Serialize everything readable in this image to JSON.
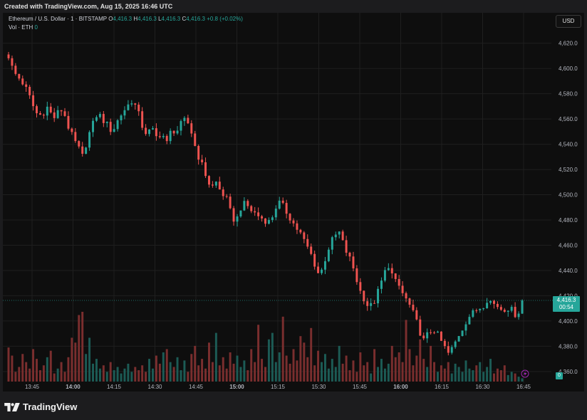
{
  "header": {
    "created_text": "Created with TradingView.com, Aug 15, 2025 16:46 UTC"
  },
  "legend": {
    "symbol": "Ethereum / U.S. Dollar · 1 · BITSTAMP",
    "open_label": "O",
    "open": "4,416.3",
    "high_label": "H",
    "high": "4,416.3",
    "low_label": "L",
    "low": "4,416.3",
    "close_label": "C",
    "close": "4,416.3",
    "change": "+0.8 (+0.02%)",
    "volume_label": "Vol · ETH",
    "volume": "0"
  },
  "currency_button": "USD",
  "price_tag": {
    "price": "4,416.3",
    "countdown": "00:54"
  },
  "volume_tag": "0",
  "brand": "TradingView",
  "colors": {
    "up": "#26a69a",
    "down": "#ef5350",
    "background": "#0e0e0e",
    "grid": "#1f1f1f"
  },
  "chart_data": {
    "type": "candlestick",
    "symbol": "ETH/USD",
    "interval_minutes": 1,
    "ylim": [
      4352,
      4630
    ],
    "y_ticks": [
      4620,
      4600,
      4580,
      4560,
      4540,
      4520,
      4500,
      4480,
      4460,
      4440,
      4420,
      4400,
      4380,
      4360
    ],
    "y_tick_labels": [
      "4,620.0",
      "4,600.0",
      "4,580.0",
      "4,560.0",
      "4,540.0",
      "4,520.0",
      "4,500.0",
      "4,480.0",
      "4,460.0",
      "4,440.0",
      "4,420.0",
      "4,400.0",
      "4,380.0",
      "4,360.0"
    ],
    "x_ticks": [
      "13:45",
      "14:00",
      "14:15",
      "14:30",
      "14:45",
      "15:00",
      "15:15",
      "15:30",
      "15:45",
      "16:00",
      "16:15",
      "16:30",
      "16:45"
    ],
    "bold_x_ticks": [
      "14:00",
      "15:00",
      "16:00"
    ],
    "current_price": 4416.3,
    "close_path": [
      4610,
      4597,
      4593,
      4588,
      4580,
      4570,
      4562,
      4565,
      4570,
      4560,
      4565,
      4568,
      4555,
      4545,
      4538,
      4530,
      4545,
      4555,
      4565,
      4560,
      4555,
      4550,
      4558,
      4565,
      4570,
      4575,
      4568,
      4555,
      4548,
      4552,
      4545,
      4550,
      4540,
      4552,
      4550,
      4556,
      4560,
      4550,
      4535,
      4525,
      4515,
      4505,
      4510,
      4502,
      4498,
      4485,
      4478,
      4490,
      4493,
      4488,
      4485,
      4482,
      4480,
      4478,
      4490,
      4494,
      4488,
      4482,
      4475,
      4470,
      4462,
      4455,
      4445,
      4435,
      4448,
      4460,
      4467,
      4470,
      4458,
      4450,
      4440,
      4425,
      4418,
      4410,
      4415,
      4425,
      4437,
      4445,
      4432,
      4428,
      4420,
      4414,
      4405,
      4395,
      4384,
      4390,
      4394,
      4388,
      4381,
      4374,
      4379,
      4388,
      4395,
      4403,
      4406,
      4410,
      4412,
      4418,
      4414,
      4412,
      4409,
      4411,
      4408,
      4404,
      4416.3
    ],
    "volumes": [
      21,
      16,
      6,
      9,
      17,
      12,
      8,
      20,
      14,
      7,
      10,
      15,
      19,
      5,
      8,
      12,
      6,
      15,
      27,
      24,
      41,
      43,
      17,
      27,
      11,
      14,
      8,
      10,
      6,
      12,
      7,
      9,
      5,
      8,
      11,
      6,
      9,
      7,
      10,
      6,
      14,
      8,
      16,
      11,
      18,
      20,
      12,
      9,
      15,
      7,
      13,
      6,
      17,
      22,
      10,
      14,
      8,
      24,
      12,
      30,
      10,
      15,
      8,
      18,
      11,
      16,
      9,
      13,
      7,
      20,
      12,
      35,
      14,
      9,
      26,
      30,
      12,
      18,
      40,
      16,
      11,
      20,
      13,
      28,
      24,
      15,
      33,
      10,
      19,
      12,
      17,
      8,
      14,
      9,
      22,
      11,
      16,
      7,
      13,
      6,
      18,
      10,
      12,
      5,
      20,
      9,
      14,
      8,
      11,
      22,
      15,
      18,
      12,
      38,
      20,
      10,
      16,
      26,
      14,
      9,
      22,
      12,
      6,
      10,
      8,
      12,
      5,
      11,
      9,
      6,
      13,
      8,
      7,
      10,
      12,
      6,
      9,
      14,
      5,
      8,
      7,
      10,
      4,
      6,
      5,
      3,
      2
    ]
  }
}
